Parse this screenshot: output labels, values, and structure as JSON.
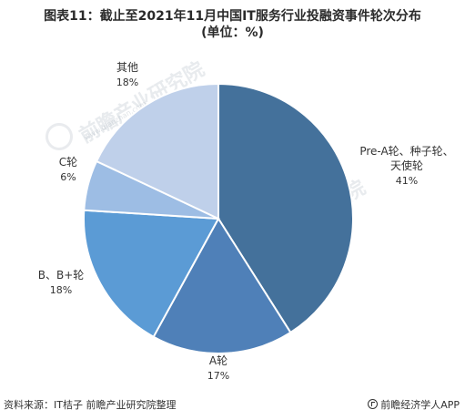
{
  "header": {
    "title_line1": "图表11：截止至2021年11月中国IT服务行业投融资事件轮次分布",
    "title_line2": "(单位：%)"
  },
  "footer": {
    "source": "资料来源：IT桔子 前瞻产业研究院整理",
    "brand": "前瞻经济学人APP"
  },
  "watermark": {
    "text": "前瞻产业研究院",
    "subtext": "www.qianzhan.com"
  },
  "chart_data": {
    "type": "pie",
    "title": "图表11：截止至2021年11月中国IT服务行业投融资事件轮次分布",
    "unit": "(单位：%)",
    "start_angle": "12 o'clock, clockwise",
    "slices": [
      {
        "label_lines": [
          "Pre-A轮、种子轮、",
          "天使轮"
        ],
        "value": 41,
        "value_label": "41%",
        "color": "#44719b"
      },
      {
        "label_lines": [
          "A轮"
        ],
        "value": 17,
        "value_label": "17%",
        "color": "#4f80b8"
      },
      {
        "label_lines": [
          "B、B+轮"
        ],
        "value": 18,
        "value_label": "18%",
        "color": "#5b9bd5"
      },
      {
        "label_lines": [
          "C轮"
        ],
        "value": 6,
        "value_label": "6%",
        "color": "#9dbde4"
      },
      {
        "label_lines": [
          "其他"
        ],
        "value": 18,
        "value_label": "18%",
        "color": "#bfd0ea"
      }
    ]
  }
}
